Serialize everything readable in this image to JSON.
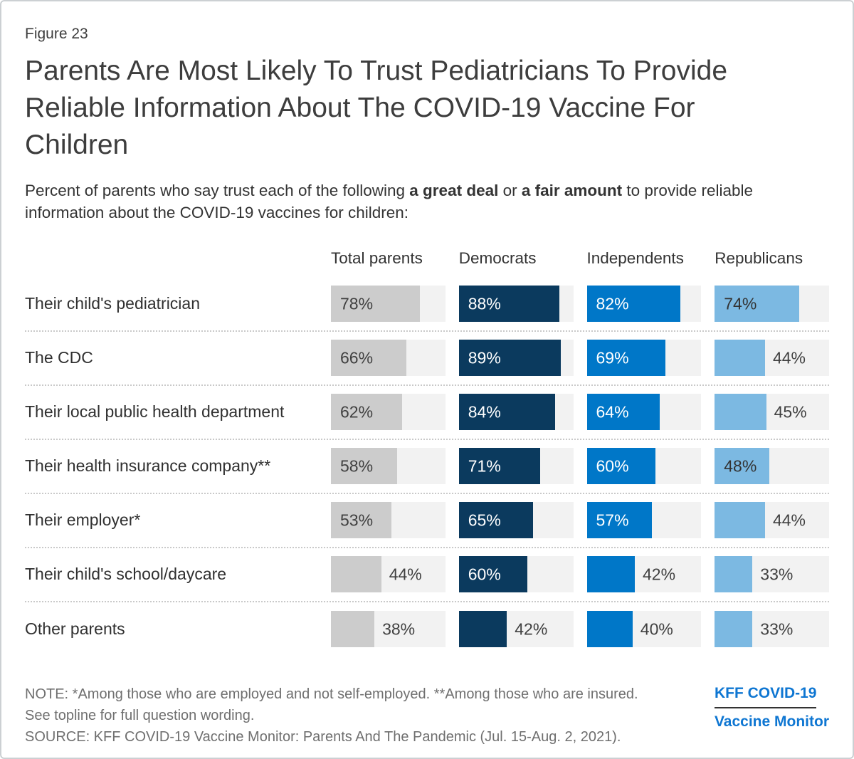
{
  "figure_label": "Figure 23",
  "title": "Parents Are Most Likely To Trust Pediatricians To Provide Reliable Information About The COVID-19 Vaccine For Children",
  "subtitle": {
    "prefix": "Percent of parents who say trust each of the following ",
    "bold1": "a great deal",
    "mid": " or ",
    "bold2": "a fair amount",
    "suffix": " to provide reliable information about the COVID-19 vaccines for children:"
  },
  "chart_data": {
    "type": "bar",
    "orientation": "horizontal",
    "categories": [
      "Their child's pediatrician",
      "The CDC",
      "Their local public health department",
      "Their health insurance company**",
      "Their employer*",
      "Their child's school/daycare",
      "Other parents"
    ],
    "series": [
      {
        "name": "Total parents",
        "color": "#cccccc",
        "inside_label_color": "#404040",
        "values": [
          78,
          66,
          62,
          58,
          53,
          44,
          38
        ]
      },
      {
        "name": "Democrats",
        "color": "#0b3a5e",
        "inside_label_color": "#ffffff",
        "values": [
          88,
          89,
          84,
          71,
          65,
          60,
          42
        ]
      },
      {
        "name": "Independents",
        "color": "#0077c8",
        "inside_label_color": "#ffffff",
        "values": [
          82,
          69,
          64,
          60,
          57,
          42,
          40
        ]
      },
      {
        "name": "Republicans",
        "color": "#7cb9e2",
        "inside_label_color": "#333333",
        "values": [
          74,
          44,
          45,
          48,
          44,
          33,
          33
        ]
      }
    ],
    "value_suffix": "%",
    "xlim": [
      0,
      100
    ],
    "grid": false,
    "legend_position": "column-headers-top",
    "track_color": "#f2f2f2",
    "outside_label_color": "#404040",
    "inside_label_min_value": 48
  },
  "note": "NOTE: *Among those who are employed and not self-employed. **Among those who are insured. See topline for full question wording.",
  "source": "SOURCE: KFF COVID-19 Vaccine Monitor: Parents And The Pandemic (Jul. 15-Aug. 2, 2021).",
  "logo": {
    "line1": "KFF COVID-19",
    "line2": "Vaccine Monitor",
    "color": "#0e76d2"
  }
}
